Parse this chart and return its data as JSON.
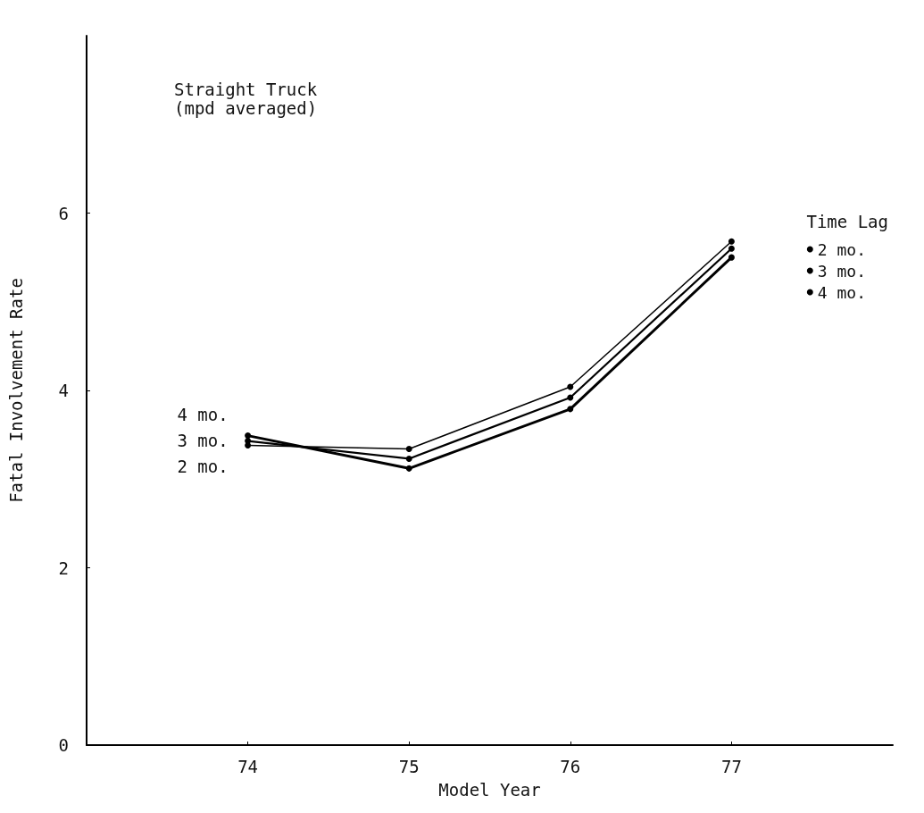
{
  "chart_data": {
    "type": "line",
    "title": "Straight Truck",
    "subtitle": "(mpd averaged)",
    "xlabel": "Model Year",
    "ylabel": "Fatal Involvement Rate",
    "legend_title": "Time Lag",
    "x": [
      74,
      75,
      76,
      77
    ],
    "series": [
      {
        "name": "2 mo.",
        "color": "#000000",
        "values": [
          3.38,
          3.34,
          4.04,
          5.68
        ]
      },
      {
        "name": "3 mo.",
        "color": "#000000",
        "values": [
          3.43,
          3.23,
          3.92,
          5.6
        ]
      },
      {
        "name": "4 mo.",
        "color": "#000000",
        "values": [
          3.49,
          3.12,
          3.79,
          5.5
        ]
      }
    ],
    "xlim": [
      73,
      78
    ],
    "xticks": [
      74,
      75,
      76,
      77
    ],
    "ylim": [
      0,
      8
    ],
    "yticks": [
      0,
      2,
      4,
      6
    ],
    "grid": false,
    "legend": "right",
    "marker": "circle",
    "line_style": "solid"
  }
}
